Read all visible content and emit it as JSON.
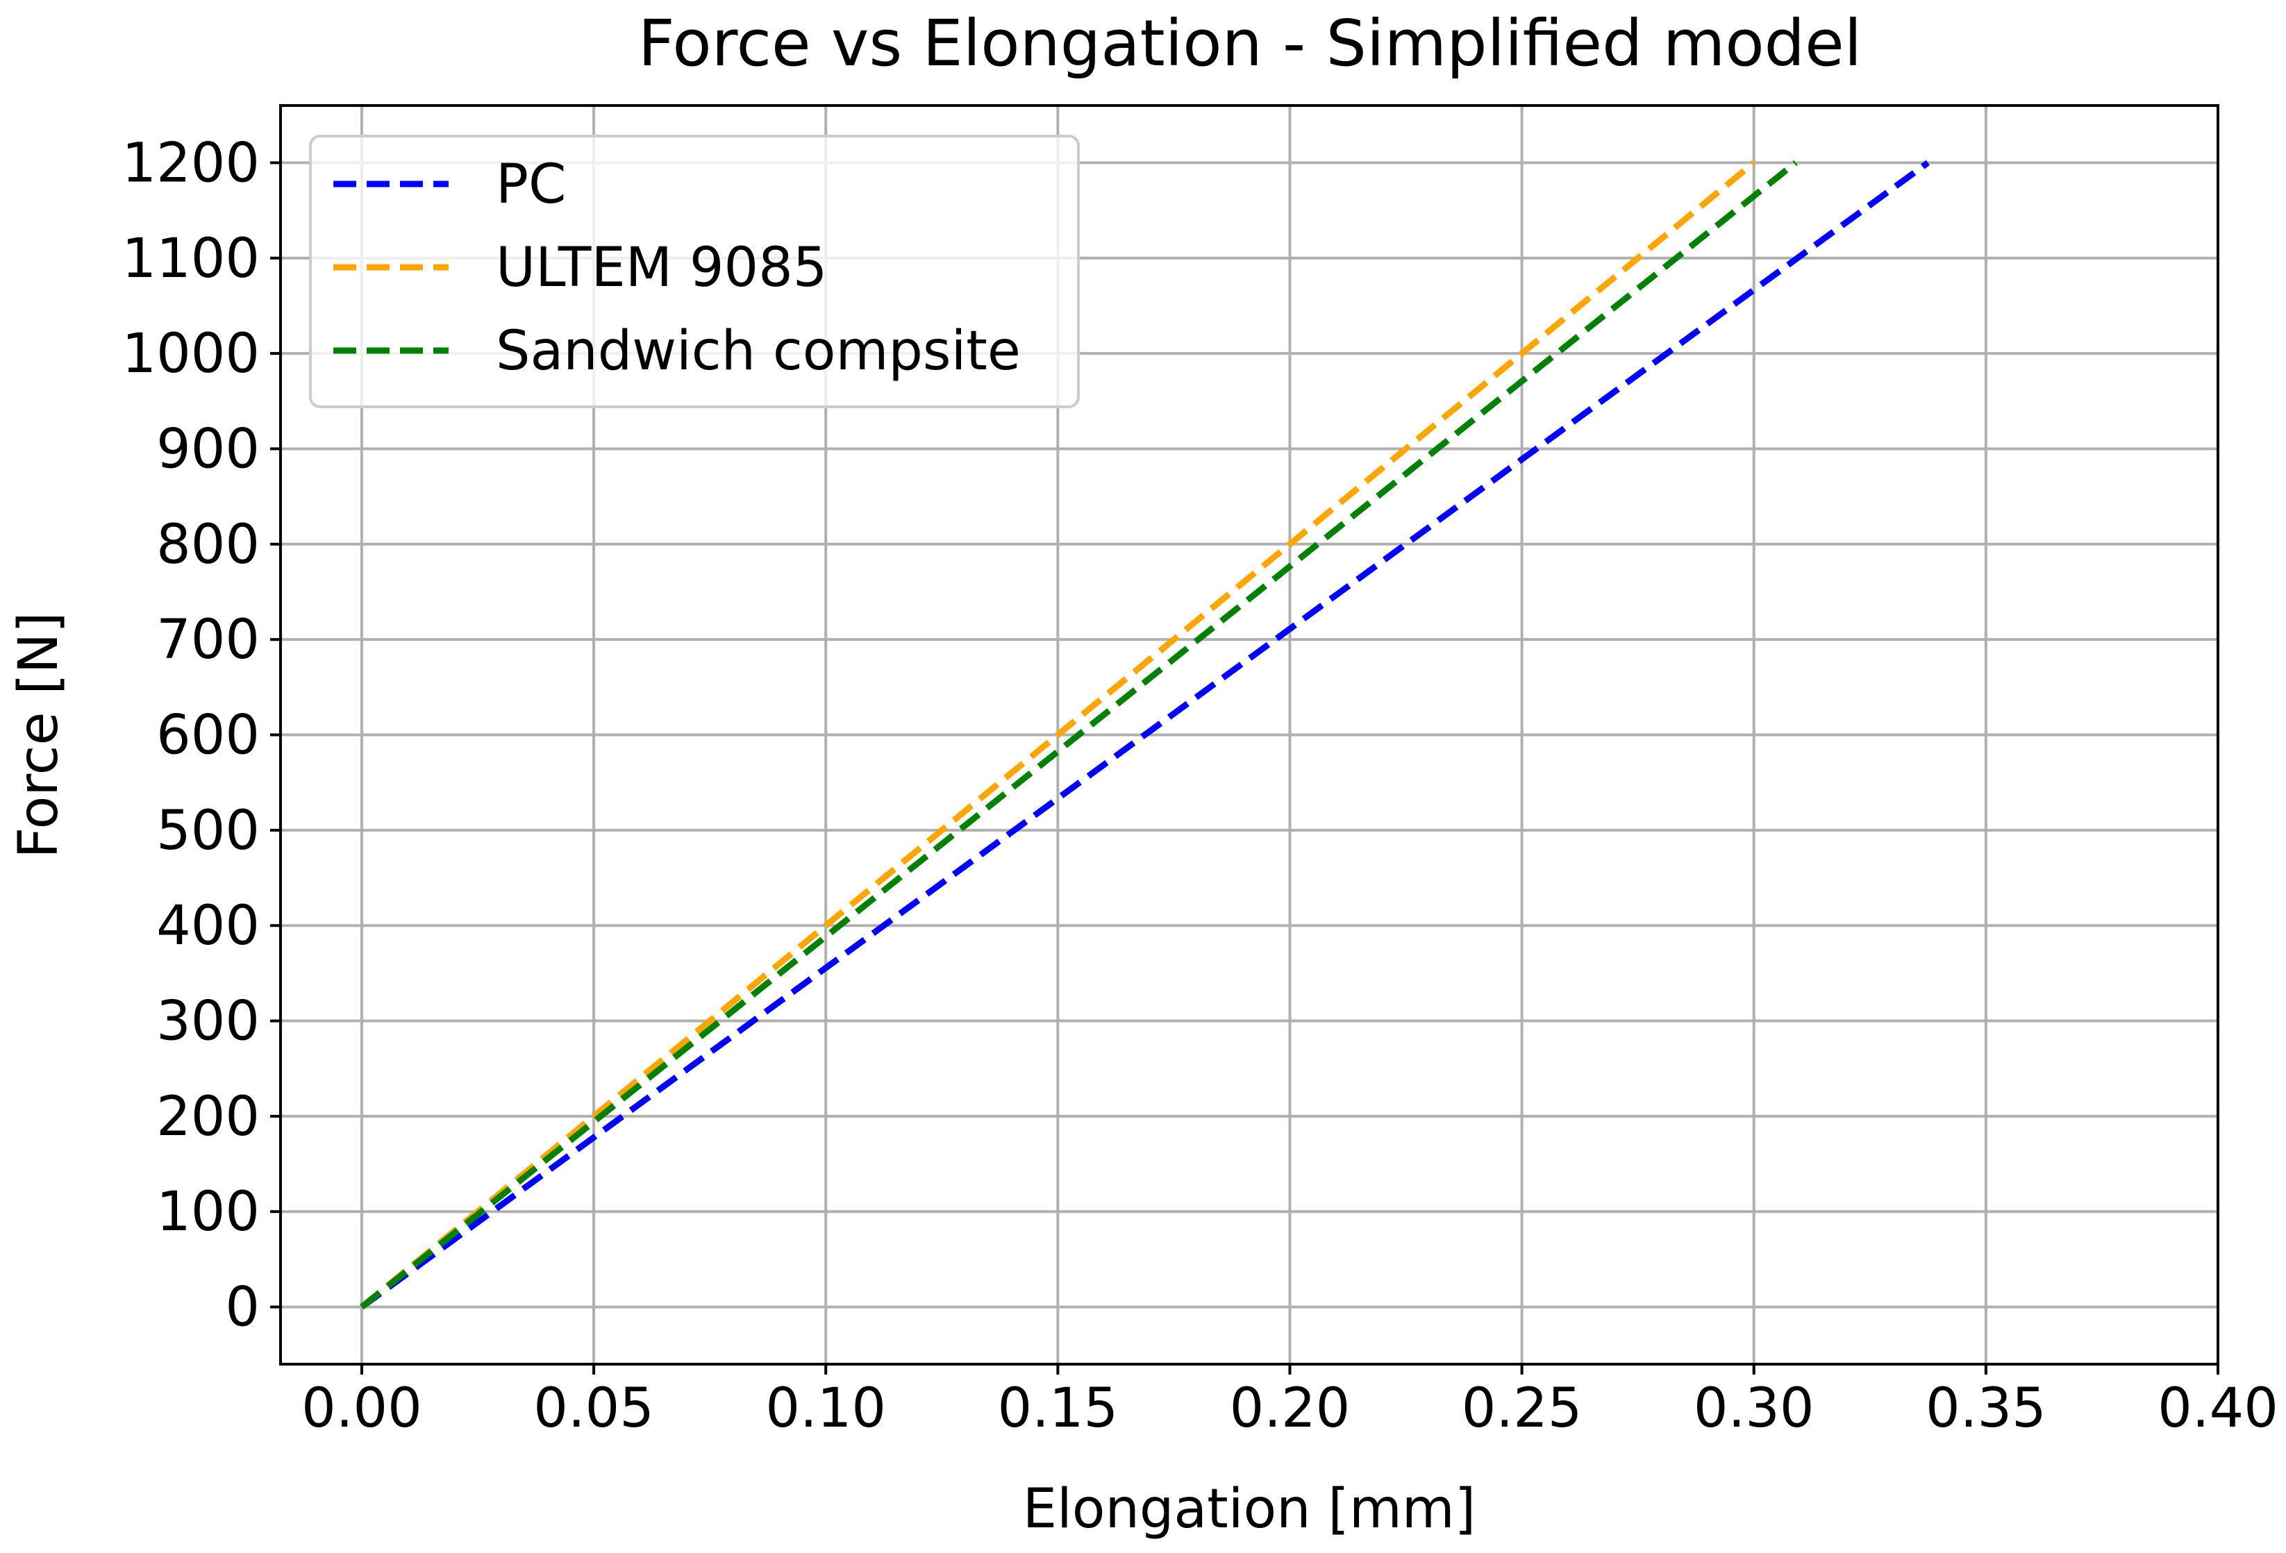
{
  "chart_data": {
    "type": "line",
    "title": "Force vs Elongation - Simplified model",
    "xlabel": "Elongation [mm]",
    "ylabel": "Force [N]",
    "xlim": [
      -0.0175,
      0.4
    ],
    "ylim": [
      -60,
      1260
    ],
    "grid": true,
    "legend_position": "top-left",
    "x_ticks": [
      0.0,
      0.05,
      0.1,
      0.15,
      0.2,
      0.25,
      0.3,
      0.35,
      0.4
    ],
    "x_tick_labels": [
      "0.00",
      "0.05",
      "0.10",
      "0.15",
      "0.20",
      "0.25",
      "0.30",
      "0.35",
      "0.40"
    ],
    "y_ticks": [
      0,
      100,
      200,
      300,
      400,
      500,
      600,
      700,
      800,
      900,
      1000,
      1100,
      1200
    ],
    "y_tick_labels": [
      "0",
      "100",
      "200",
      "300",
      "400",
      "500",
      "600",
      "700",
      "800",
      "900",
      "1000",
      "1100",
      "1200"
    ],
    "series": [
      {
        "name": "PC",
        "color": "#0000ff",
        "style": "dashed",
        "x": [
          0.0,
          0.3375
        ],
        "y": [
          0,
          1200
        ]
      },
      {
        "name": "ULTEM 9085",
        "color": "#ffa500",
        "style": "dashed",
        "x": [
          0.0,
          0.3
        ],
        "y": [
          0,
          1200
        ]
      },
      {
        "name": "Sandwich compsite",
        "color": "#008000",
        "style": "dashed",
        "x": [
          0.0,
          0.309
        ],
        "y": [
          0,
          1200
        ]
      }
    ]
  }
}
